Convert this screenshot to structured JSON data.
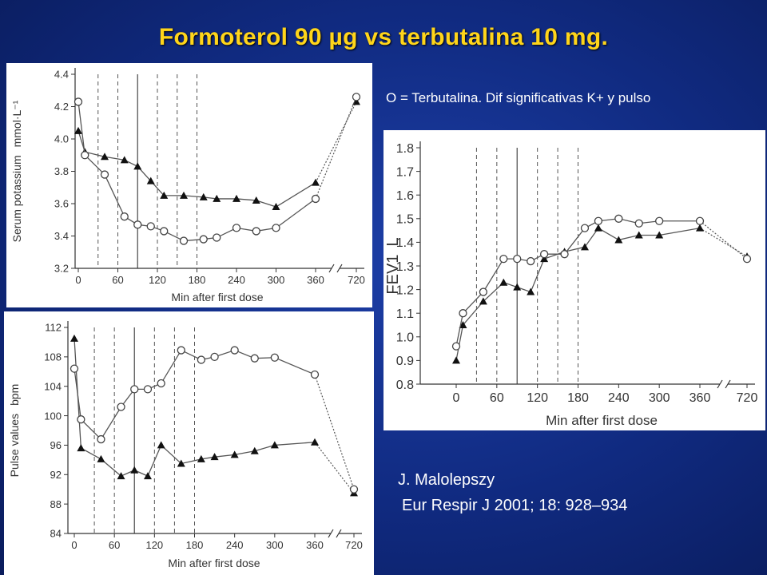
{
  "title": "Formoterol 90 µg vs terbutalina 10 mg.",
  "note": "O = Terbutalina. Dif significativas K+ y pulso",
  "citation": {
    "author": "J. Malolepszy",
    "journal": "Eur Respir J 2001; 18: 928–934"
  },
  "colors": {
    "background": "#102a80",
    "title": "#ffd51a",
    "text": "#ffffff",
    "series": "#555555"
  },
  "chart_data": [
    {
      "type": "line",
      "xlabel": "Min after first dose",
      "ylabel": "Serum potassium",
      "yunit": "mmol·L⁻¹",
      "x_ticks": [
        0,
        60,
        120,
        180,
        240,
        300,
        360,
        720
      ],
      "y_ticks": [
        "3.2",
        "3.4",
        "3.6",
        "3.8",
        "4.0",
        "4.2",
        "4.4"
      ],
      "ylim": [
        3.2,
        4.4
      ],
      "x_axis_break": "between 360 and 720",
      "grid": false,
      "dashed_vlines": [
        30,
        60,
        120,
        150,
        180
      ],
      "solid_vlines": [
        90
      ],
      "series": [
        {
          "marker": "triangle",
          "points": [
            [
              0,
              4.05
            ],
            [
              10,
              3.92
            ],
            [
              40,
              3.89
            ],
            [
              70,
              3.87
            ],
            [
              90,
              3.83
            ],
            [
              110,
              3.74
            ],
            [
              130,
              3.65
            ],
            [
              160,
              3.65
            ],
            [
              190,
              3.64
            ],
            [
              210,
              3.63
            ],
            [
              240,
              3.63
            ],
            [
              270,
              3.62
            ],
            [
              300,
              3.58
            ],
            [
              360,
              3.73
            ],
            [
              720,
              4.23
            ]
          ]
        },
        {
          "marker": "circle",
          "points": [
            [
              0,
              4.23
            ],
            [
              10,
              3.9
            ],
            [
              40,
              3.78
            ],
            [
              70,
              3.52
            ],
            [
              90,
              3.47
            ],
            [
              110,
              3.46
            ],
            [
              130,
              3.43
            ],
            [
              160,
              3.37
            ],
            [
              190,
              3.38
            ],
            [
              210,
              3.39
            ],
            [
              240,
              3.45
            ],
            [
              270,
              3.43
            ],
            [
              300,
              3.45
            ],
            [
              360,
              3.63
            ],
            [
              720,
              4.26
            ]
          ]
        }
      ]
    },
    {
      "type": "line",
      "xlabel": "Min after first dose",
      "ylabel": "Pulse values",
      "yunit": "bpm",
      "x_ticks": [
        0,
        60,
        120,
        180,
        240,
        300,
        360,
        720
      ],
      "y_ticks": [
        "84",
        "88",
        "92",
        "96",
        "100",
        "104",
        "108",
        "112"
      ],
      "ylim": [
        84,
        112
      ],
      "x_axis_break": "between 360 and 720",
      "grid": false,
      "dashed_vlines": [
        30,
        60,
        120,
        150,
        180
      ],
      "solid_vlines": [
        90
      ],
      "series": [
        {
          "marker": "triangle",
          "points": [
            [
              0,
              110.5
            ],
            [
              10,
              95.6
            ],
            [
              40,
              94.1
            ],
            [
              70,
              91.8
            ],
            [
              90,
              92.6
            ],
            [
              110,
              91.8
            ],
            [
              130,
              96.0
            ],
            [
              160,
              93.5
            ],
            [
              190,
              94.1
            ],
            [
              210,
              94.4
            ],
            [
              240,
              94.7
            ],
            [
              270,
              95.2
            ],
            [
              300,
              96.0
            ],
            [
              360,
              96.4
            ],
            [
              720,
              89.5
            ]
          ]
        },
        {
          "marker": "circle",
          "points": [
            [
              0,
              106.4
            ],
            [
              10,
              99.5
            ],
            [
              40,
              96.8
            ],
            [
              70,
              101.2
            ],
            [
              90,
              103.6
            ],
            [
              110,
              103.6
            ],
            [
              130,
              104.4
            ],
            [
              160,
              108.9
            ],
            [
              190,
              107.6
            ],
            [
              210,
              108.0
            ],
            [
              240,
              108.9
            ],
            [
              270,
              107.8
            ],
            [
              300,
              107.9
            ],
            [
              360,
              105.6
            ],
            [
              720,
              90.0
            ]
          ]
        }
      ]
    },
    {
      "type": "line",
      "xlabel": "Min after first dose",
      "ylabel": "FEV1",
      "yunit": "L",
      "x_ticks": [
        0,
        60,
        120,
        180,
        240,
        300,
        360,
        720
      ],
      "y_ticks": [
        "0.8",
        "0.9",
        "1.0",
        "1.1",
        "1.2",
        "1.3",
        "1.4",
        "1.5",
        "1.6",
        "1.7",
        "1.8"
      ],
      "ylim": [
        0.8,
        1.8
      ],
      "x_axis_break": "between 360 and 720",
      "grid": false,
      "dashed_vlines": [
        30,
        60,
        120,
        150,
        180
      ],
      "solid_vlines": [
        90
      ],
      "series": [
        {
          "marker": "triangle",
          "points": [
            [
              0,
              0.9
            ],
            [
              10,
              1.05
            ],
            [
              40,
              1.15
            ],
            [
              70,
              1.23
            ],
            [
              90,
              1.21
            ],
            [
              110,
              1.19
            ],
            [
              130,
              1.33
            ],
            [
              160,
              1.36
            ],
            [
              190,
              1.38
            ],
            [
              210,
              1.46
            ],
            [
              240,
              1.41
            ],
            [
              270,
              1.43
            ],
            [
              300,
              1.43
            ],
            [
              360,
              1.46
            ],
            [
              720,
              1.34
            ]
          ]
        },
        {
          "marker": "circle",
          "points": [
            [
              0,
              0.96
            ],
            [
              10,
              1.1
            ],
            [
              40,
              1.19
            ],
            [
              70,
              1.33
            ],
            [
              90,
              1.33
            ],
            [
              110,
              1.32
            ],
            [
              130,
              1.35
            ],
            [
              160,
              1.35
            ],
            [
              190,
              1.46
            ],
            [
              210,
              1.49
            ],
            [
              240,
              1.5
            ],
            [
              270,
              1.48
            ],
            [
              300,
              1.49
            ],
            [
              360,
              1.49
            ],
            [
              720,
              1.33
            ]
          ]
        }
      ]
    }
  ]
}
